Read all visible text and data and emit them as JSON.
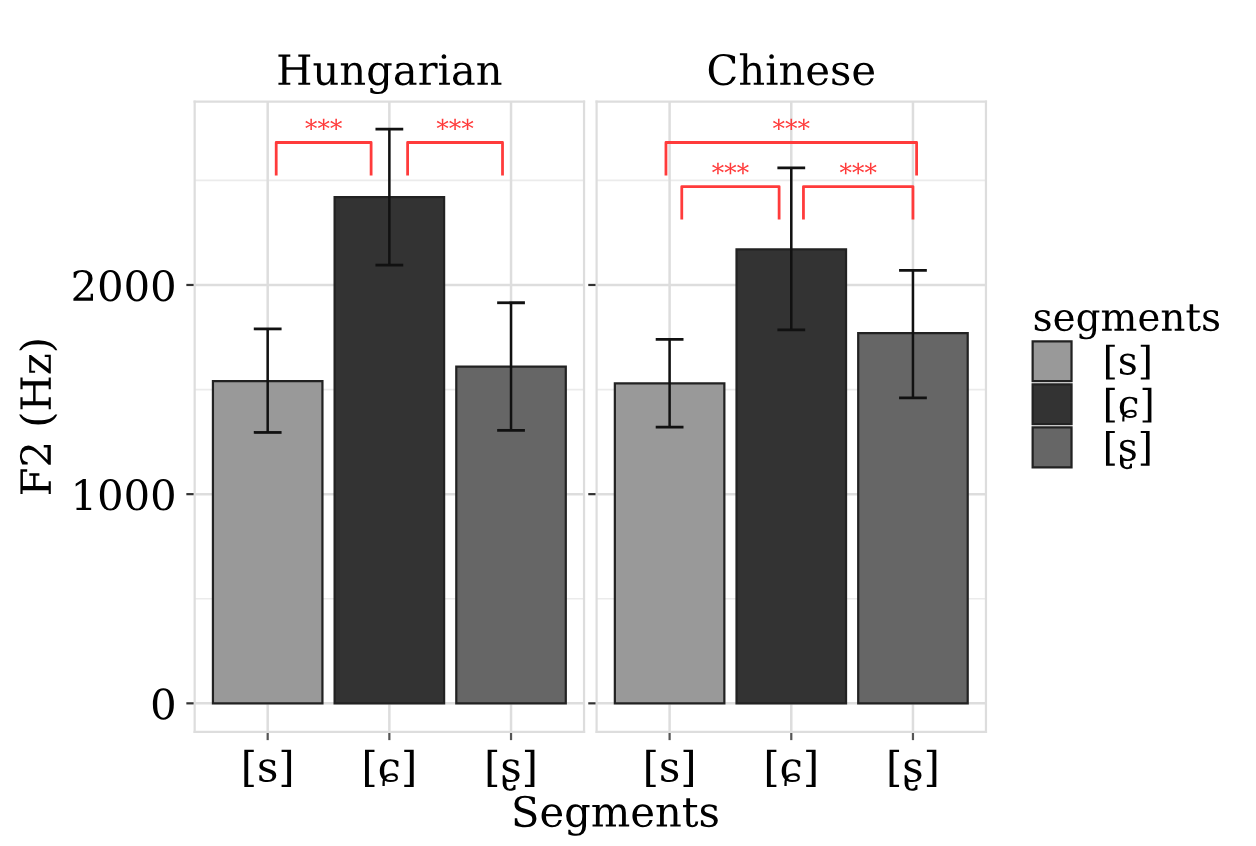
{
  "chart_data": [
    {
      "type": "bar",
      "title": "Hungarian",
      "ylabel": "F2 (Hz)",
      "xlabel": "Segments",
      "categories": [
        "[s]",
        "[ɕ]",
        "[ʂ]"
      ],
      "series": [
        {
          "color": "#999999",
          "values": [
            1540,
            null,
            null
          ],
          "errors": [
            [
              1295,
              1790
            ],
            null,
            null
          ]
        },
        {
          "color": "#333333",
          "values": [
            null,
            2420,
            null
          ],
          "errors": [
            null,
            [
              2095,
              2745
            ],
            null
          ]
        },
        {
          "color": "#666666",
          "values": [
            null,
            null,
            1610
          ],
          "errors": [
            null,
            null,
            [
              1305,
              1915
            ]
          ]
        }
      ],
      "ylim": [
        -136,
        2877
      ],
      "yticks": [
        0,
        1000,
        2000
      ],
      "grid": true,
      "annotations": [
        "***",
        "***"
      ]
    },
    {
      "type": "bar",
      "title": "Chinese",
      "categories": [
        "[s]",
        "[ɕ]",
        "[ʂ]"
      ],
      "series": [
        {
          "name": "[s]",
          "color": "#999999",
          "values": [
            1530,
            null,
            null
          ],
          "errors": [
            [
              1320,
              1740
            ],
            null,
            null
          ]
        },
        {
          "name": "[ɕ]",
          "color": "#333333",
          "values": [
            null,
            2170,
            null
          ],
          "errors": [
            null,
            [
              1785,
              2560
            ],
            null
          ]
        },
        {
          "name": "[ʂ]",
          "color": "#666666",
          "values": [
            null,
            null,
            1770
          ],
          "errors": [
            null,
            null,
            [
              1460,
              2070
            ]
          ]
        }
      ],
      "ylim": [
        -136,
        2877
      ],
      "yticks": [
        0,
        1000,
        2000
      ],
      "tick_labels": "x",
      "grid": true,
      "legend": "right",
      "legend_title": "segments",
      "annotations": [
        "***",
        "***",
        "***"
      ]
    }
  ]
}
